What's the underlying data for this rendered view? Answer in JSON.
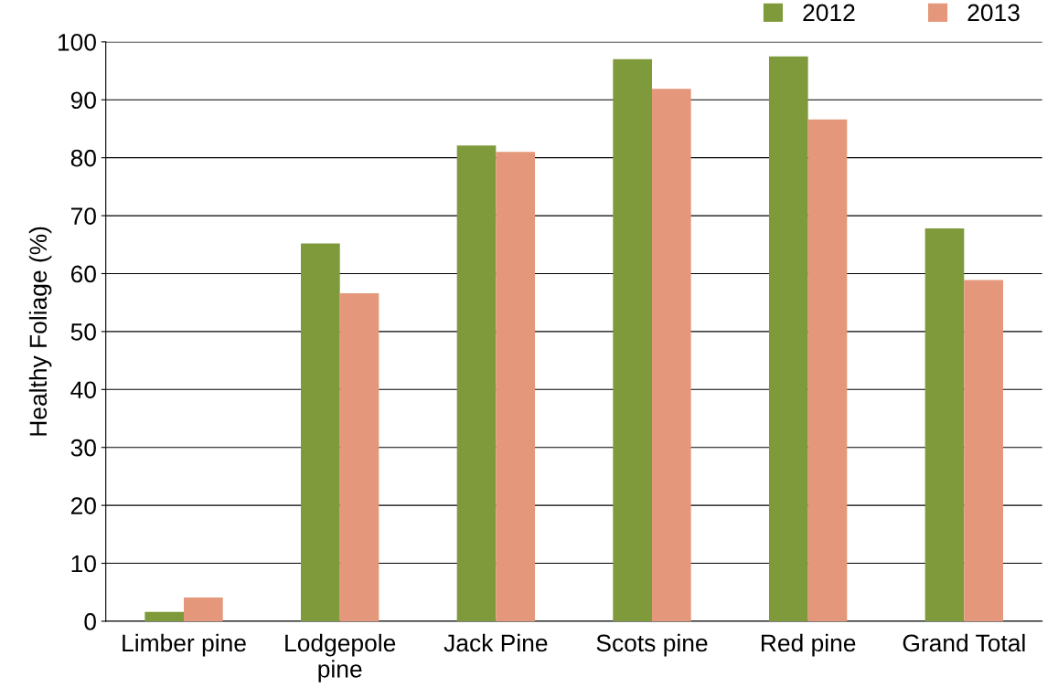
{
  "chart_data": {
    "type": "bar",
    "ylabel": "Healthy Foliage (%)",
    "categories": [
      "Limber pine",
      "Lodgepole\npine",
      "Jack Pine",
      "Scots pine",
      "Red pine",
      "Grand Total"
    ],
    "series": [
      {
        "name": "2012",
        "color": "#7f9a3a",
        "values": [
          1.6,
          65.2,
          82.1,
          97.0,
          97.5,
          67.8
        ]
      },
      {
        "name": "2013",
        "color": "#e4977a",
        "values": [
          4.1,
          56.6,
          81.0,
          91.9,
          86.6,
          58.9
        ]
      }
    ],
    "ylim": [
      0,
      100
    ],
    "yticks": [
      0,
      10,
      20,
      30,
      40,
      50,
      60,
      70,
      80,
      90,
      100
    ],
    "grid": "y",
    "legend": "top right"
  }
}
